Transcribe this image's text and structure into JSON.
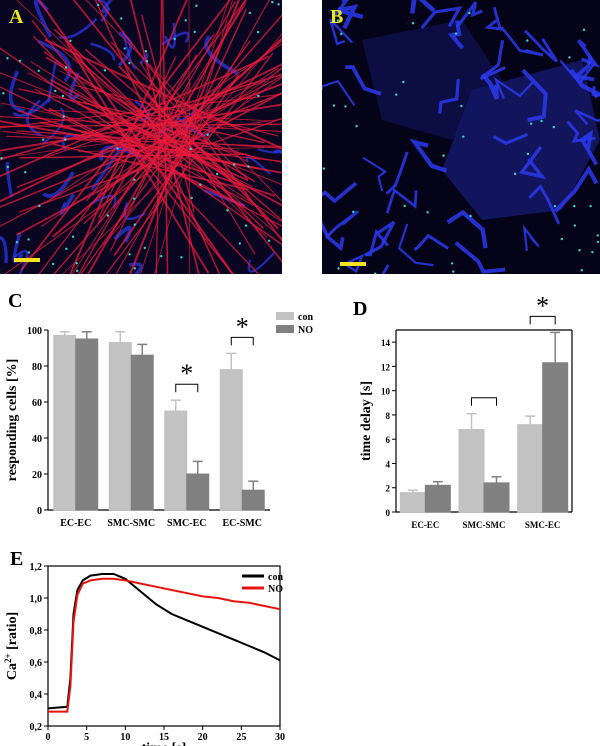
{
  "panels": {
    "a": {
      "label": "A",
      "label_color": "#e8e81e"
    },
    "b": {
      "label": "B",
      "label_color": "#e8e81e"
    },
    "c": {
      "label": "C"
    },
    "d": {
      "label": "D"
    },
    "e": {
      "label": "E"
    }
  },
  "colors": {
    "con_bar": "#c2c2c2",
    "no_bar": "#808080",
    "con_line": "#000000",
    "no_line": "#e8130f",
    "scale_bar": "#f3e21c",
    "actin": "#e81a3c",
    "membrane": "#2a3af0",
    "junction": "#33d9c8"
  },
  "chart_data": [
    {
      "id": "C",
      "type": "bar",
      "categories": [
        "EC-EC",
        "SMC-SMC",
        "SMC-EC",
        "EC-SMC"
      ],
      "series": [
        {
          "name": "con",
          "values": [
            97,
            93,
            55,
            78
          ],
          "errors": [
            2,
            6,
            6,
            9
          ]
        },
        {
          "name": "NO",
          "values": [
            95,
            86,
            20,
            11
          ],
          "errors": [
            4,
            6,
            7,
            5
          ]
        }
      ],
      "ylabel": "responding cells [%]",
      "ylim": [
        0,
        100
      ],
      "yticks": [
        "0",
        "20",
        "40",
        "60",
        "80",
        "100"
      ],
      "significance": [
        {
          "category": "SMC-EC",
          "mark": "*"
        },
        {
          "category": "EC-SMC",
          "mark": "*"
        }
      ],
      "legend": "top-right"
    },
    {
      "id": "D",
      "type": "bar",
      "categories": [
        "EC-EC",
        "SMC-SMC",
        "SMC-EC"
      ],
      "series": [
        {
          "name": "con",
          "values": [
            1.6,
            6.8,
            7.2
          ],
          "errors": [
            0.2,
            1.3,
            0.7
          ]
        },
        {
          "name": "NO",
          "values": [
            2.2,
            2.4,
            12.3
          ],
          "errors": [
            0.3,
            0.5,
            2.5
          ]
        }
      ],
      "ylabel": "time delay [s]",
      "ylim": [
        0,
        15
      ],
      "yticks": [
        "0",
        "2",
        "4",
        "6",
        "8",
        "10",
        "12",
        "14"
      ],
      "significance": [
        {
          "category": "SMC-SMC",
          "mark": ""
        },
        {
          "category": "SMC-EC",
          "mark": "*"
        }
      ]
    },
    {
      "id": "E",
      "type": "line",
      "xlabel": "time [s]",
      "ylabel": "Ca2+ [ratio]",
      "xlim": [
        0,
        30
      ],
      "ylim": [
        0.2,
        1.2
      ],
      "xticks": [
        "0",
        "5",
        "10",
        "15",
        "20",
        "25",
        "30"
      ],
      "yticks": [
        "0,2",
        "0,4",
        "0,6",
        "0,8",
        "1,0",
        "1,2"
      ],
      "series": [
        {
          "name": "con",
          "x": [
            0,
            2.5,
            2.9,
            3.3,
            3.8,
            4.5,
            5.5,
            7,
            8.5,
            10,
            12,
            14,
            16,
            18,
            20,
            22,
            24,
            26,
            28,
            30
          ],
          "y": [
            0.31,
            0.32,
            0.5,
            0.9,
            1.05,
            1.11,
            1.14,
            1.15,
            1.15,
            1.12,
            1.04,
            0.96,
            0.9,
            0.86,
            0.82,
            0.78,
            0.74,
            0.7,
            0.66,
            0.61
          ]
        },
        {
          "name": "NO",
          "x": [
            0,
            2.5,
            2.9,
            3.3,
            3.8,
            4.5,
            5.5,
            7,
            8.5,
            10,
            12,
            14,
            16,
            18,
            20,
            22,
            24,
            26,
            28,
            30
          ],
          "y": [
            0.29,
            0.29,
            0.45,
            0.85,
            1.02,
            1.09,
            1.11,
            1.12,
            1.12,
            1.11,
            1.09,
            1.07,
            1.05,
            1.03,
            1.01,
            1.0,
            0.98,
            0.97,
            0.95,
            0.93
          ]
        }
      ],
      "legend": "top-right"
    }
  ]
}
